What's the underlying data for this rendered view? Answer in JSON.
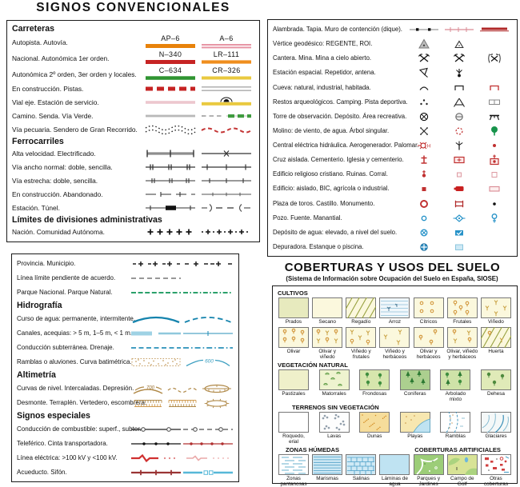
{
  "title": "SIGNOS  CONVENCIONALES",
  "palette": {
    "autopista": "#e8820a",
    "autovia": "#e795a5",
    "nacional": "#c62323",
    "autonomica_1er_orden": "#ef8e1e",
    "autonomica_2o_orden": "#2f9431",
    "locales": "#e9c93f",
    "via_verde": "#3f9b3f",
    "hidrografia": "#1583ad",
    "curvas_de_nivel": "#b08948",
    "limites": "#111111",
    "simbolos_rojo": "#c03030",
    "simbolos_azul": "#2692c8"
  },
  "roads": {
    "sections": [
      {
        "header": "Carreteras",
        "rows": [
          {
            "label": "Autopista. Autovía.",
            "cells": [
              {
                "shield": "AP–6",
                "sym": "bar-orange"
              },
              {
                "shield": "A–6",
                "sym": "bar-pink2"
              }
            ]
          },
          {
            "label": "Nacional. Autonómica 1er orden.",
            "cells": [
              {
                "shield": "N–340",
                "sym": "bar-red"
              },
              {
                "shield": "LR–111",
                "sym": "bar-orange2"
              }
            ]
          },
          {
            "label": "Autonómica 2º orden, 3er orden y locales.",
            "cells": [
              {
                "shield": "C–634",
                "sym": "bar-green"
              },
              {
                "shield": "CR–326",
                "sym": "bar-yellow"
              }
            ]
          },
          {
            "label": "En construcción. Pistas.",
            "cells": [
              {
                "sym": "dash-red"
              },
              {
                "sym": "double-gray"
              }
            ]
          },
          {
            "label": "Vial eje. Estación de servicio.",
            "cells": [
              {
                "sym": "line-pink"
              },
              {
                "sym": "bar-yellow-st"
              }
            ]
          },
          {
            "label": "Camino. Senda. Vía Verde.",
            "cells": [
              {
                "sym": "line-gray"
              },
              {
                "sym": "senda-verde"
              }
            ]
          },
          {
            "label": "Vía pecuaria. Sendero de Gran Recorrido.",
            "cells": [
              {
                "sym": "pecuaria"
              },
              {
                "sym": "gr-send"
              }
            ]
          }
        ]
      },
      {
        "header": "Ferrocarriles",
        "rows": [
          {
            "label": "Alta velocidad. Electrificado.",
            "cells": [
              {
                "sym": "rail-hs"
              },
              {
                "sym": "rail-x"
              }
            ]
          },
          {
            "label": "Vía ancho normal: doble, sencilla.",
            "cells": [
              {
                "sym": "rail-d"
              },
              {
                "sym": "rail-s"
              }
            ]
          },
          {
            "label": "Vía estrecha: doble, sencilla.",
            "cells": [
              {
                "sym": "rail-nd"
              },
              {
                "sym": "rail-ns"
              }
            ]
          },
          {
            "label": "En construcción. Abandonado.",
            "cells": [
              {
                "sym": "rail-constr"
              },
              {
                "sym": "rail-aband"
              }
            ]
          },
          {
            "label": "Estación. Túnel.",
            "cells": [
              {
                "sym": "rail-station"
              },
              {
                "sym": "tunnel"
              }
            ]
          }
        ]
      },
      {
        "header": "Límites de divisiones administrativas",
        "rows": [
          {
            "label": "Nación. Comunidad Autónoma.",
            "cells": [
              {
                "sym": "limit-nacion"
              },
              {
                "sym": "limit-ca"
              }
            ]
          }
        ]
      }
    ]
  },
  "features": {
    "rows": [
      {
        "label": "Alambrada. Tapia. Muro de contención (dique).",
        "cells": [
          "fence",
          "tapia",
          "muro"
        ]
      },
      {
        "label": "Vértice geodésico: REGENTE, ROI.",
        "cells": [
          "geo-reg",
          "geo-roi",
          ""
        ]
      },
      {
        "label": "Cantera. Mina. Mina a cielo abierto.",
        "cells": [
          "mine",
          "mine",
          "mine-open"
        ]
      },
      {
        "label": "Estación espacial. Repetidor, antena.",
        "cells": [
          "dish",
          "antenna",
          ""
        ]
      },
      {
        "label": "Cueva: natural, industrial, habitada.",
        "cells": [
          "cave-n",
          "cave-i",
          "cave-h"
        ]
      },
      {
        "label": "Restos arqueológicos. Camping. Pista deportiva.",
        "cells": [
          "arch",
          "camping",
          "sport"
        ]
      },
      {
        "label": "Torre de observación. Depósito. Área recreativa.",
        "cells": [
          "tower",
          "depo-g",
          "mesa"
        ]
      },
      {
        "label": "Molino: de viento, de agua. Árbol singular.",
        "cells": [
          "molino-v",
          "molino-a",
          "arbol"
        ]
      },
      {
        "label": "Central eléctrica hidráulica. Aerogenerador. Palomar.",
        "cells": [
          "hidro",
          "aero",
          "palomar"
        ]
      },
      {
        "label": "Cruz aislada. Cementerio. Iglesia y cementerio.",
        "cells": [
          "cruz",
          "cement",
          "igl-cem"
        ]
      },
      {
        "label": "Edificio religioso cristiano. Ruinas. Corral.",
        "cells": [
          "ed-rel",
          "ruinas",
          "corral"
        ]
      },
      {
        "label": "Edificio: aislado, BIC, agrícola o industrial.",
        "cells": [
          "ed-ais",
          "bic",
          "ed-ind"
        ]
      },
      {
        "label": "Plaza de toros. Castillo. Monumento.",
        "cells": [
          "toros",
          "castillo",
          "monu"
        ]
      },
      {
        "label": "Pozo. Fuente. Manantial.",
        "cells": [
          "pozo",
          "fuente",
          "manantial"
        ]
      },
      {
        "label": "Depósito de agua: elevado, a nivel del suelo.",
        "cells": [
          "dep-el",
          "dep-su",
          ""
        ]
      },
      {
        "label": "Depuradora. Estanque o piscina.",
        "cells": [
          "depur",
          "piscina",
          ""
        ]
      }
    ]
  },
  "hydro": {
    "sections": [
      {
        "header": null,
        "rows": [
          {
            "label": "Provincia. Municipio.",
            "cells": [
              "limit-prov",
              "limit-muni"
            ]
          },
          {
            "label": "Línea límite pendiente de acuerdo.",
            "cells": [
              "gray-dash",
              ""
            ]
          },
          {
            "label": "Parque Nacional. Parque Natural.",
            "cells": [
              "pn-dash",
              "pn-dashdot"
            ]
          }
        ]
      },
      {
        "header": "Hidrografía",
        "rows": [
          {
            "label": "Curso de agua: permanente, intermitente.",
            "cells": [
              "river",
              "river-i"
            ]
          },
          {
            "label": "Canales, acequias: > 5 m, 1–5 m, < 1 m.",
            "cells": [
              "canal-wide",
              "canal-thin"
            ]
          },
          {
            "label": "Conducción subterránea. Drenaje.",
            "cells": [
              "hyd-dash",
              "hyd-dashdot"
            ]
          },
          {
            "label": "Ramblas o aluviones. Curva batimétrica.",
            "cells": [
              "rambla",
              "batim"
            ]
          }
        ]
      },
      {
        "header": "Altimetría",
        "rows": [
          {
            "label": "Curvas de nivel. Intercaladas. Depresión.",
            "cells": [
              "curva700",
              "curva-int",
              "depresion"
            ]
          },
          {
            "label": "Desmonte. Terraplén. Vertedero, escombrera.",
            "cells": [
              "desmonte",
              "terraplen",
              "vertedero"
            ]
          }
        ]
      },
      {
        "header": "Signos especiales",
        "rows": [
          {
            "label": "Conducción de combustible: superf., subter.",
            "cells": [
              "fuel-s",
              "fuel-u"
            ]
          },
          {
            "label": "Teleférico. Cinta transportadora.",
            "cells": [
              "telef",
              "cinta"
            ]
          },
          {
            "label": "Línea eléctrica: >100 kV y <100 kV.",
            "cells": [
              "elec-h",
              "elec-l"
            ]
          },
          {
            "label": "Acueducto. Sifón.",
            "cells": [
              "acued",
              "sifon"
            ]
          }
        ]
      }
    ]
  },
  "landcover": {
    "title": "COBERTURAS Y USOS DEL SUELO",
    "subtitle": "(Sistema de Información sobre Ocupación del Suelo en España, SIOSE)",
    "groups": [
      {
        "header": "CULTIVOS",
        "tiles": [
          {
            "label": "Prados",
            "key": "prados"
          },
          {
            "label": "Secano",
            "key": "secano"
          },
          {
            "label": "Regadío",
            "key": "regadio"
          },
          {
            "label": "Arroz",
            "key": "arroz"
          },
          {
            "label": "Cítricos",
            "key": "citricos"
          },
          {
            "label": "Frutales",
            "key": "frutales"
          },
          {
            "label": "Viñedo",
            "key": "vinedo"
          },
          {
            "label": "Olivar",
            "key": "olivar"
          },
          {
            "label": "Olivar y viñedo",
            "key": "olv-vin"
          },
          {
            "label": "Viñedo y frutales",
            "key": "vin-fru"
          },
          {
            "label": "Viñedo y herbáceos",
            "key": "vin-herb"
          },
          {
            "label": "Olivar y herbáceos",
            "key": "olv-herb"
          },
          {
            "label": "Olivar, viñedo y herbáceos",
            "key": "ovh"
          },
          {
            "label": "Huerta",
            "key": "huerta"
          }
        ]
      },
      {
        "header": "VEGETACIÓN NATURAL",
        "tiles": [
          {
            "label": "Pastizales",
            "key": "pastizales"
          },
          {
            "label": "Matorrales",
            "key": "matorrales"
          },
          {
            "label": "Frondosas",
            "key": "frondosas"
          },
          {
            "label": "Coníferas",
            "key": "coniferas"
          },
          {
            "label": "Arbolado mixto",
            "key": "arbolado"
          },
          {
            "label": "Dehesa",
            "key": "dehesa"
          }
        ]
      },
      {
        "header": "TERRENOS SIN VEGETACIÓN",
        "indent": 18,
        "tiles": [
          {
            "label": "Roquedo, erial",
            "key": "roquedo"
          },
          {
            "label": "Lavas",
            "key": "lavas"
          },
          {
            "label": "Dunas",
            "key": "dunas"
          },
          {
            "label": "Playas",
            "key": "playas"
          },
          {
            "label": "Ramblas",
            "key": "ramblas"
          },
          {
            "label": "Glaciares",
            "key": "glaciares"
          }
        ]
      },
      {
        "header": "ZONAS HÚMEDAS",
        "header2": "COBERTURAS ARTIFICIALES",
        "indent": 10,
        "tiles": [
          {
            "label": "Zonas pantanosas",
            "key": "pantanosas"
          },
          {
            "label": "Marismas",
            "key": "marismas"
          },
          {
            "label": "Salinas",
            "key": "salinas"
          },
          {
            "label": "Láminas de agua",
            "key": "laminas"
          },
          {
            "label": "Parques y Jardines",
            "key": "parques"
          },
          {
            "label": "Campo de Golf",
            "key": "golf"
          },
          {
            "label": "Otras coberturas",
            "key": "otras"
          }
        ]
      }
    ]
  }
}
